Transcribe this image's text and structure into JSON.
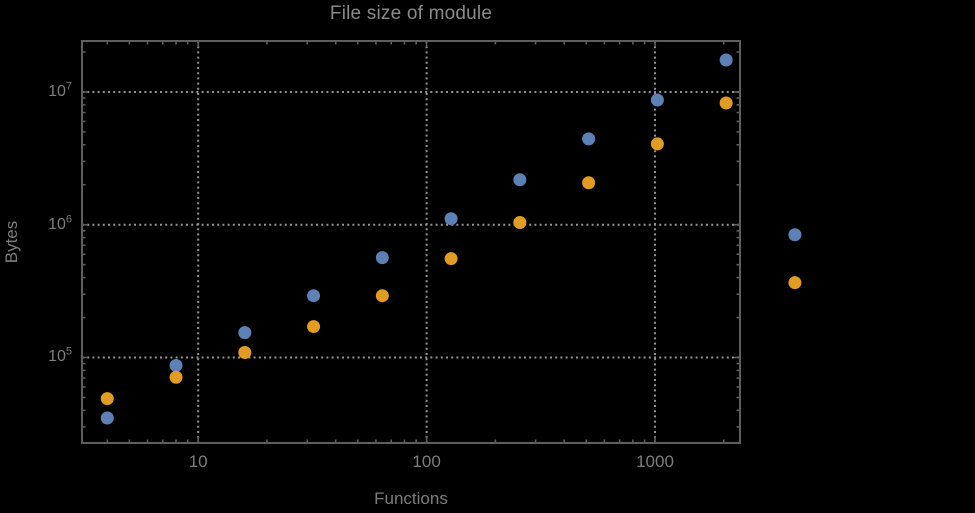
{
  "chart_data": {
    "type": "scatter",
    "title": "File size of module",
    "xlabel": "Functions",
    "ylabel": "Bytes",
    "x_scale": "log",
    "y_scale": "log",
    "grid": "dotted-major",
    "legend": null,
    "xlim": [
      3.1,
      2355
    ],
    "ylim": [
      22700,
      24200000
    ],
    "x_ticks": [
      {
        "value": 10,
        "label": "10"
      },
      {
        "value": 100,
        "label": "100"
      },
      {
        "value": 1000,
        "label": "1000"
      }
    ],
    "y_ticks": [
      {
        "value": 100000,
        "mantissa": "10",
        "exponent": "5"
      },
      {
        "value": 1000000,
        "mantissa": "10",
        "exponent": "6"
      },
      {
        "value": 10000000,
        "mantissa": "10",
        "exponent": "7"
      }
    ],
    "series": [
      {
        "name": "series-blue",
        "color": "#5E81B5",
        "x": [
          4,
          8,
          16,
          32,
          64,
          128,
          256,
          512,
          1024,
          2048,
          4096
        ],
        "y": [
          35000,
          87000,
          154000,
          292000,
          565000,
          1110000,
          2180000,
          4430000,
          8700000,
          17400000,
          840000
        ]
      },
      {
        "name": "series-orange",
        "color": "#E19C24",
        "x": [
          4,
          8,
          16,
          32,
          64,
          128,
          256,
          512,
          1024,
          2048,
          4096
        ],
        "y": [
          49000,
          71000,
          109000,
          171000,
          292000,
          555000,
          1040000,
          2070000,
          4060000,
          8260000,
          366000
        ]
      }
    ]
  },
  "colors": {
    "background": "#000000",
    "frame": "#5e5e5e",
    "gridline": "#949494",
    "text": "#7d7d7d",
    "title_text": "#8a8a8a"
  }
}
